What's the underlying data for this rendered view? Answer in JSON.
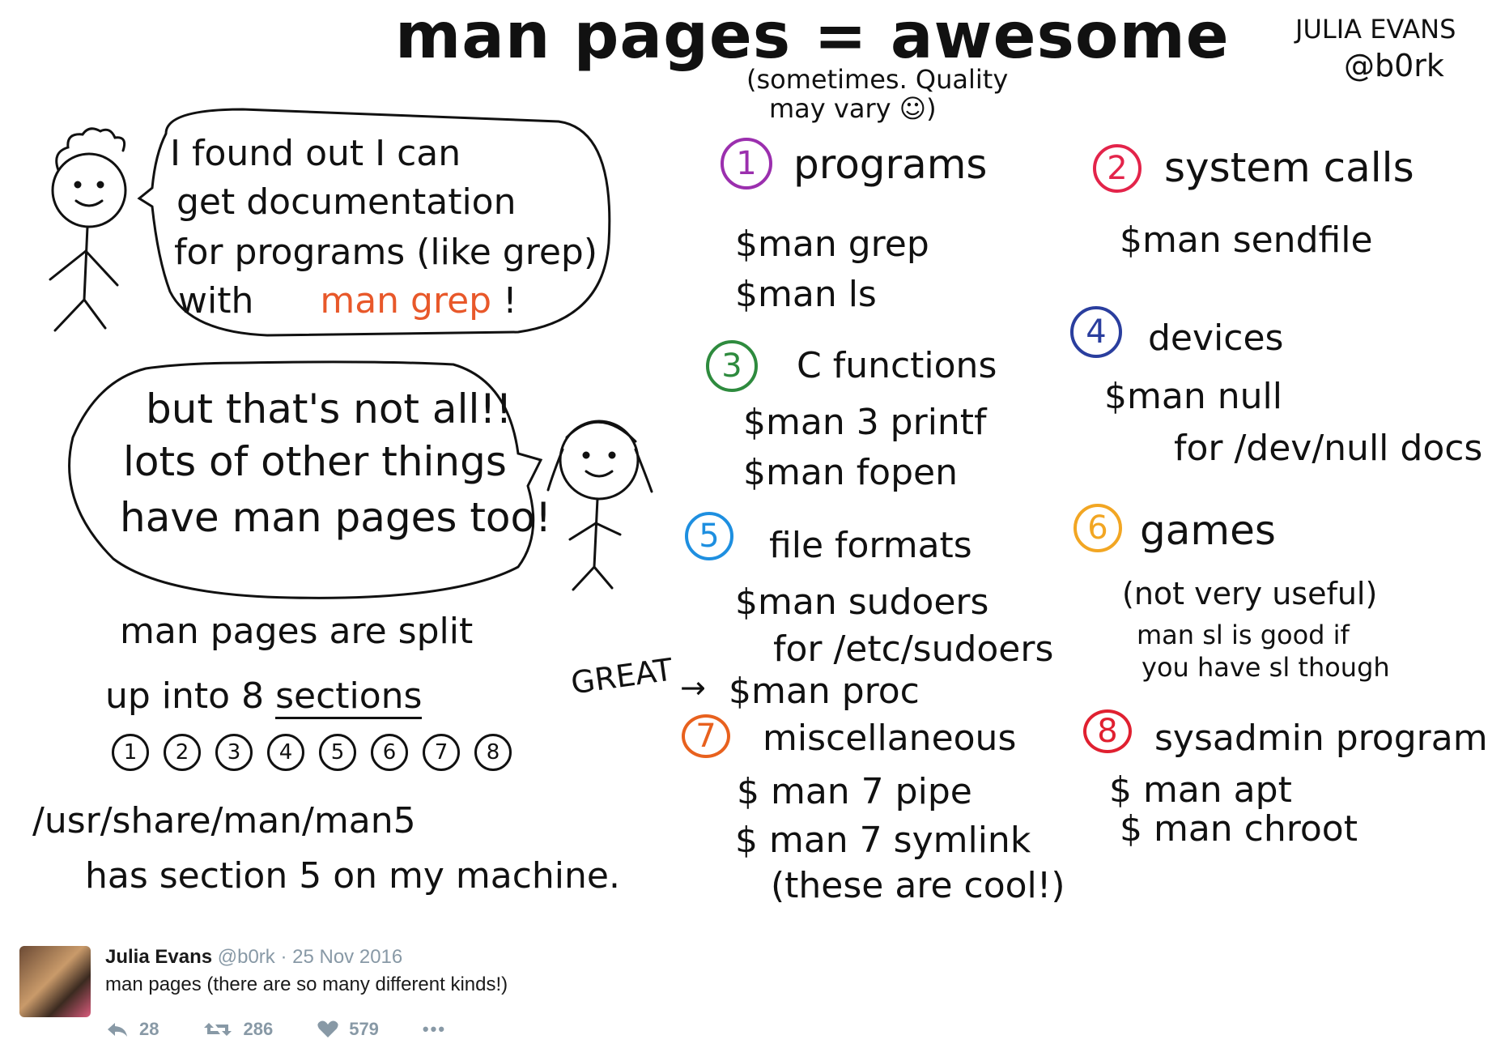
{
  "title": "man pages = awesome",
  "subtitle_line1": "(sometimes. Quality",
  "subtitle_line2": "may vary ☺)",
  "author_name": "JULIA EVANS",
  "author_handle": "@b0rk",
  "bubble1": {
    "line1": "I found out I can",
    "line2": "get documentation",
    "line3": "for programs (like grep)",
    "line4_prefix": "with",
    "line4_cmd": "man grep",
    "line4_suffix": "!"
  },
  "bubble2": {
    "line1": "but that's not all!!",
    "line2": "lots of other things",
    "line3": "have man pages too!"
  },
  "split": {
    "line1": "man pages are split",
    "line2_prefix": "up into 8",
    "line2_word": "sections",
    "numbers": [
      "1",
      "2",
      "3",
      "4",
      "5",
      "6",
      "7",
      "8"
    ]
  },
  "path": {
    "line1": "/usr/share/man/man5",
    "line2": "has section 5 on my machine."
  },
  "great_label": "GREAT",
  "great_arrow": "→",
  "sections": [
    {
      "num": "1",
      "color": "#9b2fae",
      "name": "programs",
      "lines": [
        "$man grep",
        "$man ls"
      ]
    },
    {
      "num": "2",
      "color": "#e3244a",
      "name": "system calls",
      "lines": [
        "$man sendfile"
      ]
    },
    {
      "num": "3",
      "color": "#2e8b3e",
      "name": "C functions",
      "lines": [
        "$man 3 printf",
        "$man fopen"
      ]
    },
    {
      "num": "4",
      "color": "#2a3e9e",
      "name": "devices",
      "lines": [
        "$man null",
        "for /dev/null docs"
      ]
    },
    {
      "num": "5",
      "color": "#1e8fe0",
      "name": "file formats",
      "lines": [
        "$man sudoers",
        "for /etc/sudoers",
        "$man proc"
      ]
    },
    {
      "num": "6",
      "color": "#f2a623",
      "name": "games",
      "lines": [
        "(not very useful)",
        "man sl is good if",
        "you have sl though"
      ]
    },
    {
      "num": "7",
      "color": "#e8611e",
      "name": "miscellaneous",
      "lines": [
        "$ man 7 pipe",
        "$ man 7 symlink",
        "(these are cool!)"
      ]
    },
    {
      "num": "8",
      "color": "#e02030",
      "name": "sysadmin programs",
      "lines": [
        "$ man apt",
        "$ man chroot"
      ]
    }
  ],
  "tweet": {
    "name": "Julia Evans",
    "handle": "@b0rk · 25 Nov 2016",
    "text": "man pages (there are so many different kinds!)",
    "replies": "28",
    "retweets": "286",
    "likes": "579",
    "more": "•••"
  }
}
